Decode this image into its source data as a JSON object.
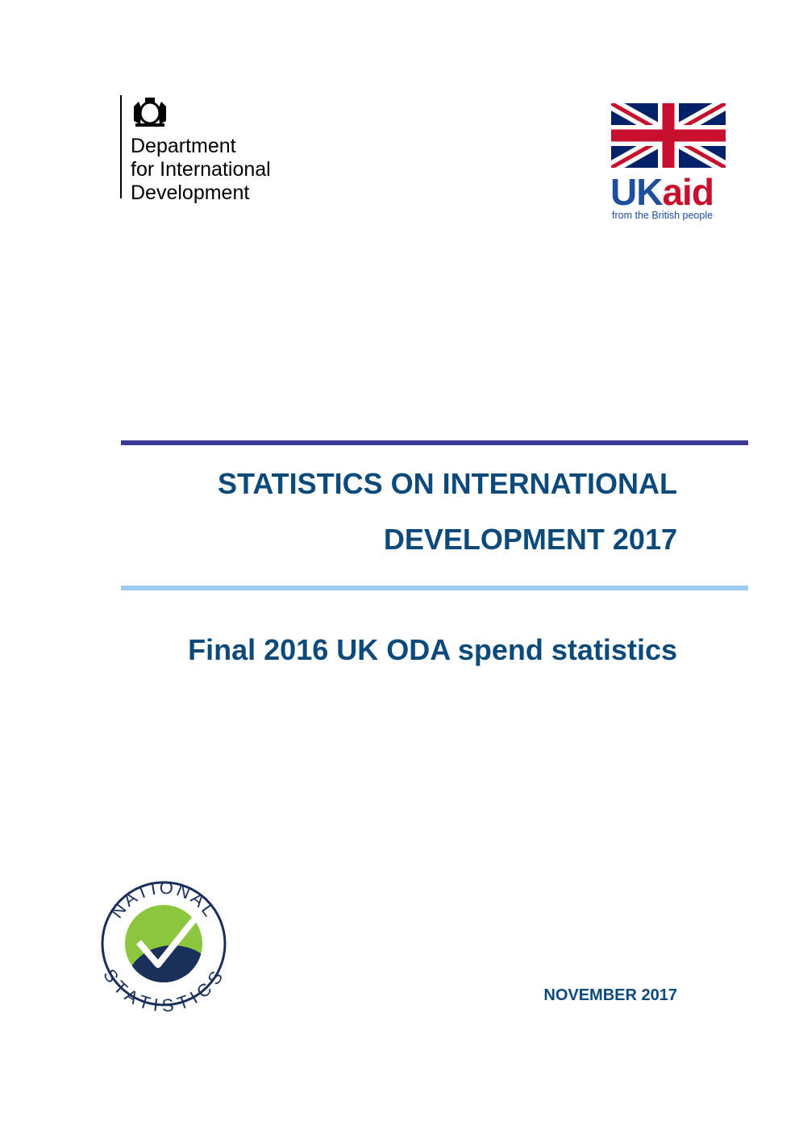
{
  "header": {
    "department": [
      "Department",
      "for International",
      "Development"
    ],
    "ukaid": {
      "uk": "UK",
      "aid": "aid",
      "tagline": "from the British people"
    }
  },
  "title": {
    "lines": [
      "STATISTICS ON INTERNATIONAL",
      "DEVELOPMENT 2017"
    ],
    "subtitle": "Final 2016 UK ODA spend statistics"
  },
  "logo": {
    "top": "NATIONAL",
    "bottom": "STATISTICS"
  },
  "date": "NOVEMBER 2017"
}
